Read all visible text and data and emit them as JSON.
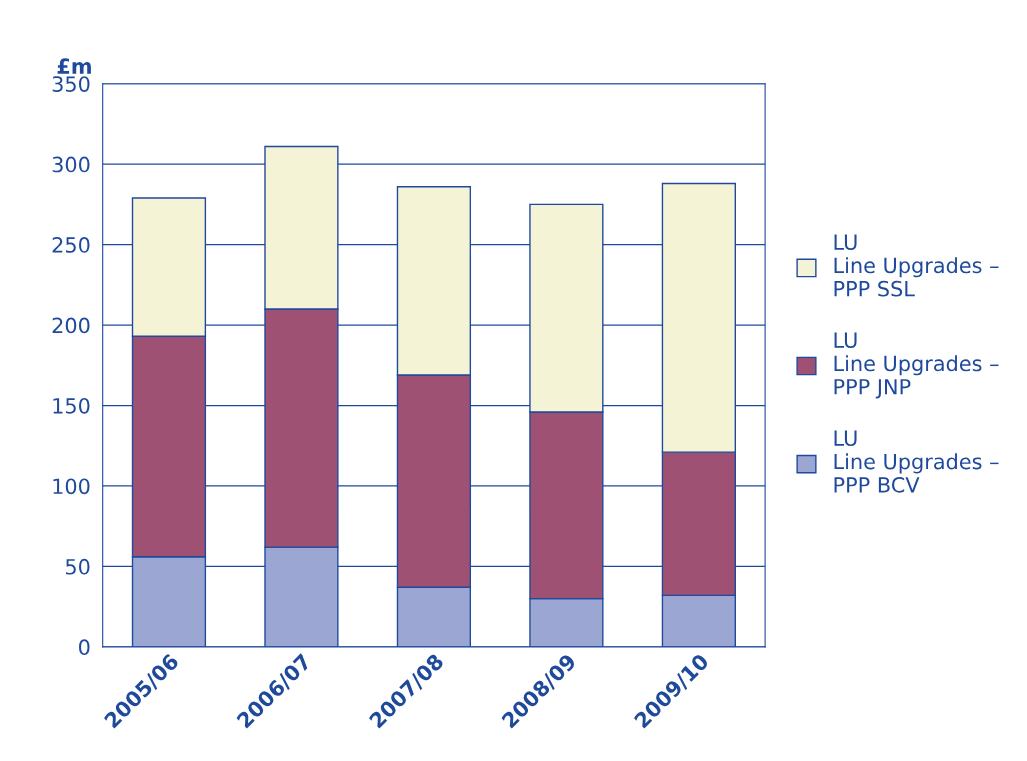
{
  "chart_data": {
    "type": "bar",
    "ylabel": "£m",
    "stacked": true,
    "categories": [
      "2005/06",
      "2006/07",
      "2007/08",
      "2008/09",
      "2009/10"
    ],
    "series": [
      {
        "name": "LU\nLine Upgrades –\nPPP BCV",
        "color": "#9ba6d3",
        "values": [
          56,
          62,
          37,
          30,
          32
        ]
      },
      {
        "name": "LU\nLine Upgrades –\nPPP JNP",
        "color": "#9e5173",
        "values": [
          137,
          148,
          132,
          116,
          89
        ]
      },
      {
        "name": "LU\nLine Upgrades –\nPPP SSL",
        "color": "#f5f3d5",
        "values": [
          86,
          101,
          117,
          129,
          167
        ]
      }
    ],
    "ylim": [
      0,
      350
    ],
    "yticks": [
      0,
      50,
      100,
      150,
      200,
      250,
      300,
      350
    ],
    "grid": "y",
    "legend": "right"
  }
}
